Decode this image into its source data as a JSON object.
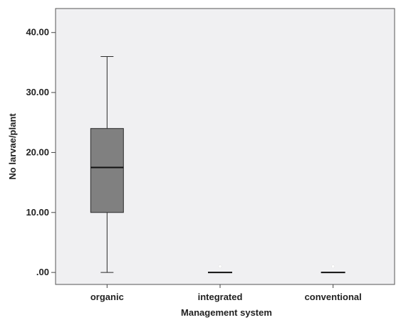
{
  "chart_data": {
    "type": "box",
    "xlabel": "Management system",
    "ylabel": "No larvae/plant",
    "ylim": [
      -2,
      44
    ],
    "yticks": [
      0,
      10,
      20,
      30,
      40
    ],
    "ytick_labels": [
      ".00",
      "10.00",
      "20.00",
      "30.00",
      "40.00"
    ],
    "categories": [
      "organic",
      "integrated",
      "conventional"
    ],
    "boxes": [
      {
        "category": "organic",
        "min": 0,
        "q1": 10,
        "median": 17.5,
        "q3": 24,
        "max": 36,
        "outliers": []
      },
      {
        "category": "integrated",
        "min": 0,
        "q1": 0,
        "median": 0,
        "q3": 0,
        "max": 0,
        "outliers": [
          1
        ]
      },
      {
        "category": "conventional",
        "min": 0,
        "q1": 0,
        "median": 0,
        "q3": 0,
        "max": 0,
        "outliers": [
          1
        ]
      }
    ],
    "colors": {
      "plot_background": "#f0f0f2",
      "box_fill": "#808080",
      "line": "#2b2b2b",
      "outlier": "#ffffff"
    },
    "grid": false,
    "legend": "none"
  }
}
